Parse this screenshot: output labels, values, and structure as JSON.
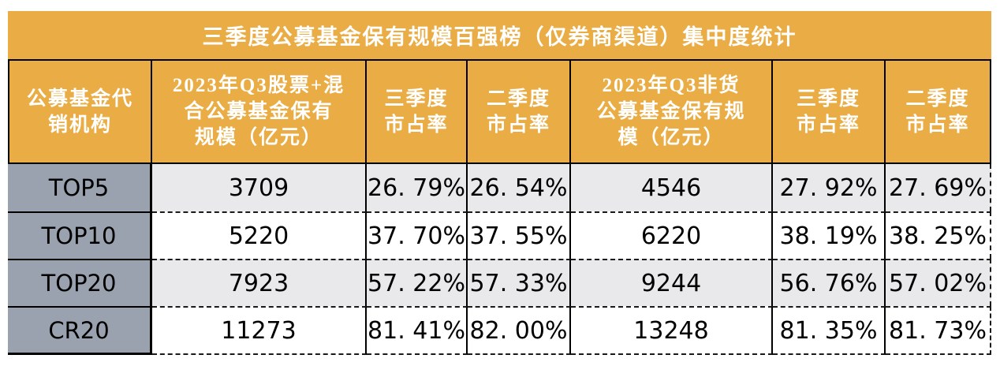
{
  "title": "三季度公募基金保有规模百强榜（仅券商渠道）集中度统计",
  "table": {
    "columns": [
      {
        "label": "公募基金代\n销机构"
      },
      {
        "label": "2023年Q3股票+混\n合公募基金保有\n规模（亿元）"
      },
      {
        "label": "三季度\n市占率"
      },
      {
        "label": "二季度\n市占率"
      },
      {
        "label": "2023年Q3非货\n公募基金保有规\n模（亿元）"
      },
      {
        "label": "三季度\n市占率"
      },
      {
        "label": "二季度\n市占率"
      }
    ],
    "rows": [
      {
        "cells": [
          "TOP5",
          "3709",
          "26. 79%",
          "26. 54%",
          "4546",
          "27. 92%",
          "27. 69%"
        ]
      },
      {
        "cells": [
          "TOP10",
          "5220",
          "37. 70%",
          "37. 55%",
          "6220",
          "38. 19%",
          "38. 25%"
        ]
      },
      {
        "cells": [
          "TOP20",
          "7923",
          "57. 22%",
          "57. 33%",
          "9244",
          "56. 76%",
          "57. 02%"
        ]
      },
      {
        "cells": [
          "CR20",
          "11273",
          "81. 41%",
          "82. 00%",
          "13248",
          "81. 35%",
          "81. 73%"
        ]
      }
    ]
  },
  "chart_data": {
    "type": "table",
    "title": "三季度公募基金保有规模百强榜（仅券商渠道）集中度统计",
    "columns": [
      "公募基金代销机构",
      "2023年Q3股票+混合公募基金保有规模（亿元）",
      "三季度市占率",
      "二季度市占率",
      "2023年Q3非货公募基金保有规模（亿元）",
      "三季度市占率",
      "二季度市占率"
    ],
    "rows": [
      [
        "TOP5",
        3709,
        "26.79%",
        "26.54%",
        4546,
        "27.92%",
        "27.69%"
      ],
      [
        "TOP10",
        5220,
        "37.70%",
        "37.55%",
        6220,
        "38.19%",
        "38.25%"
      ],
      [
        "TOP20",
        7923,
        "57.22%",
        "57.33%",
        9244,
        "56.76%",
        "57.02%"
      ],
      [
        "CR20",
        11273,
        "81.41%",
        "82.00%",
        13248,
        "81.35%",
        "81.73%"
      ]
    ]
  },
  "colors": {
    "header_bg": "#EAAD45",
    "header_text": "#FFFFFF",
    "row_label_bg": "#9AA2AF",
    "stripe_row_bg": "#E9E9EC",
    "plain_row_bg": "#FFFFFF",
    "body_text": "#000000",
    "border": "#000000"
  }
}
